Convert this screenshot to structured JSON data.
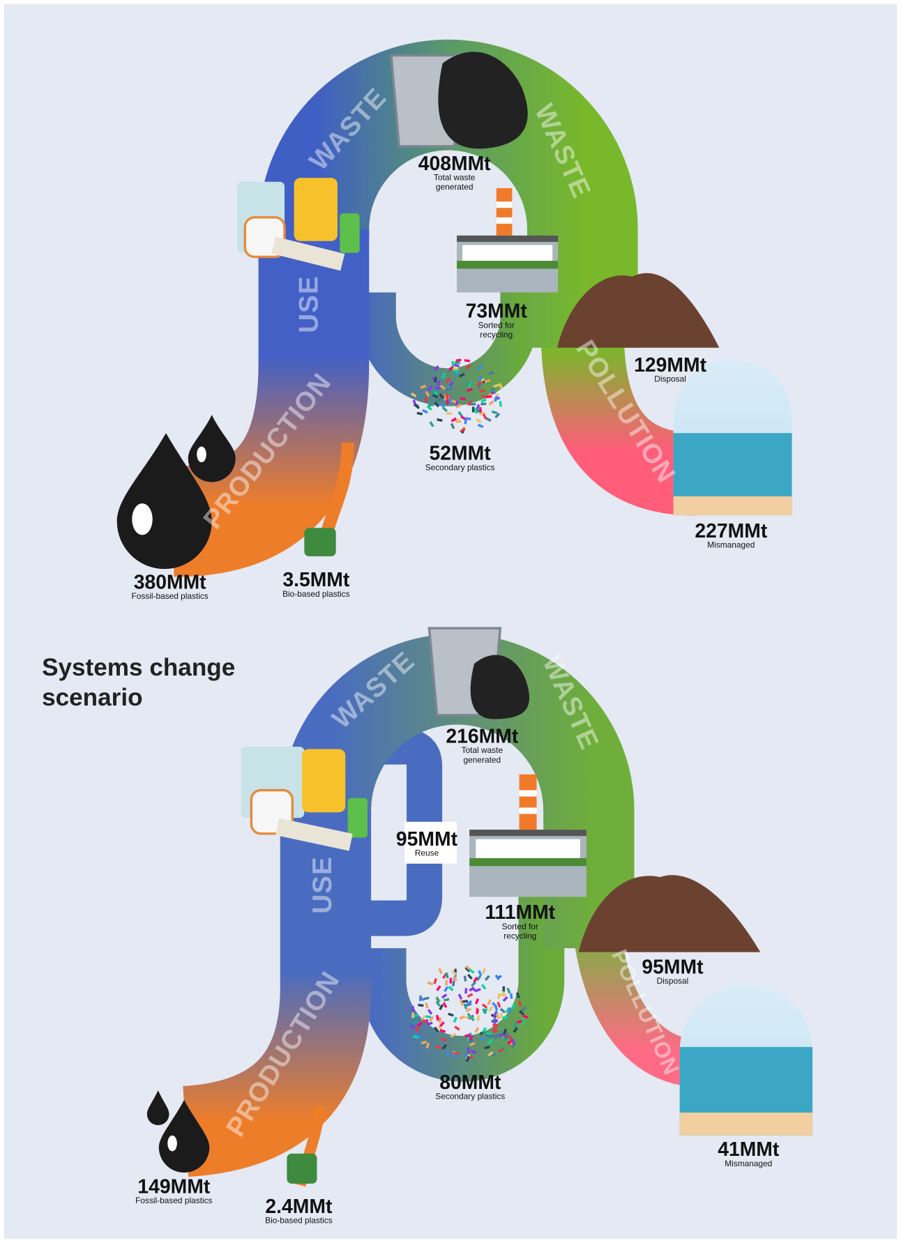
{
  "scenarios": [
    {
      "flows": {
        "waste_left": "WASTE",
        "waste_right": "WASTE",
        "use": "USE",
        "production": "PRODUCTION",
        "pollution": "POLLUTION"
      },
      "nodes": [
        {
          "value": "408MMt",
          "label_lines": [
            "Total waste",
            "generated"
          ]
        },
        {
          "value": "73MMt",
          "label_lines": [
            "Sorted for",
            "recycling"
          ]
        },
        {
          "value": "129MMt",
          "label_lines": [
            "Disposal"
          ]
        },
        {
          "value": "52MMt",
          "label_lines": [
            "Secondary plastics"
          ]
        },
        {
          "value": "227MMt",
          "label_lines": [
            "Mismanaged"
          ]
        },
        {
          "value": "380MMt",
          "label_lines": [
            "Fossil-based plastics"
          ]
        },
        {
          "value": "3.5MMt",
          "label_lines": [
            "Bio-based plastics"
          ]
        }
      ]
    },
    {
      "title_lines": [
        "Systems change",
        "scenario"
      ],
      "flows": {
        "waste_left": "WASTE",
        "waste_right": "WASTE",
        "use": "USE",
        "production": "PRODUCTION",
        "pollution": "POLLUTION"
      },
      "nodes": [
        {
          "value": "216MMt",
          "label_lines": [
            "Total waste",
            "generated"
          ]
        },
        {
          "value": "95MMt",
          "label_lines": [
            "Reuse"
          ]
        },
        {
          "value": "111MMt",
          "label_lines": [
            "Sorted for",
            "recycling"
          ]
        },
        {
          "value": "95MMt",
          "label_lines": [
            "Disposal"
          ]
        },
        {
          "value": "80MMt",
          "label_lines": [
            "Secondary plastics"
          ]
        },
        {
          "value": "41MMt",
          "label_lines": [
            "Mismanaged"
          ]
        },
        {
          "value": "149MMt",
          "label_lines": [
            "Fossil-based plastics"
          ]
        },
        {
          "value": "2.4MMt",
          "label_lines": [
            "Bio-based plastics"
          ]
        }
      ]
    }
  ]
}
